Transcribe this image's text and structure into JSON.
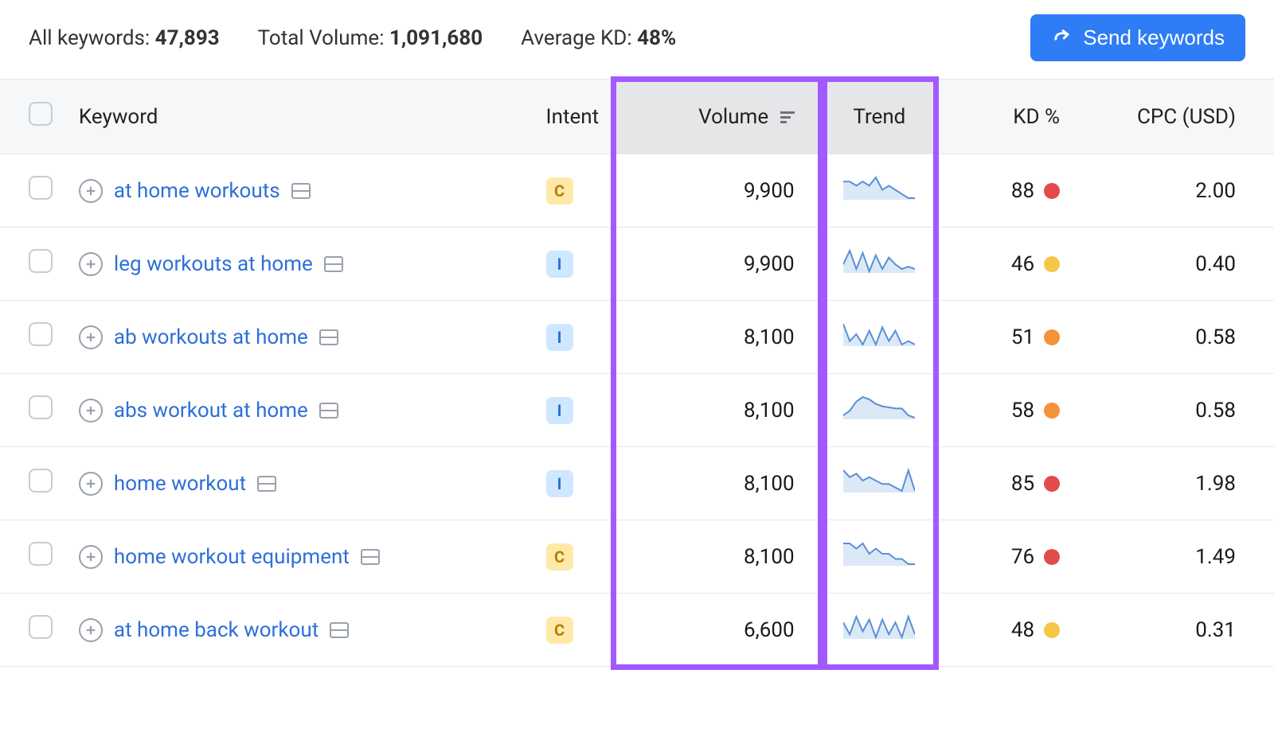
{
  "summary": {
    "all_keywords_label": "All keywords:",
    "all_keywords_value": "47,893",
    "total_volume_label": "Total Volume:",
    "total_volume_value": "1,091,680",
    "avg_kd_label": "Average KD:",
    "avg_kd_value": "48%"
  },
  "send_button_label": "Send keywords",
  "columns": {
    "keyword": "Keyword",
    "intent": "Intent",
    "volume": "Volume",
    "trend": "Trend",
    "kd": "KD %",
    "cpc": "CPC (USD)"
  },
  "intent_styles": {
    "C": {
      "bg": "#ffe9a8",
      "fg": "#b47d00"
    },
    "I": {
      "bg": "#cfe7ff",
      "fg": "#2e6fd9"
    }
  },
  "kd_colors": {
    "red": "#e44b4b",
    "orange": "#f59338",
    "yellow": "#f6c647"
  },
  "spark_style": {
    "stroke": "#5a8fd6",
    "fill": "#dbe9f7"
  },
  "highlight_color": "#a259ff",
  "rows": [
    {
      "keyword": "at home workouts",
      "intent": "C",
      "volume": "9,900",
      "kd": "88",
      "kd_color": "red",
      "cpc": "2.00",
      "spark": [
        12,
        12,
        13,
        12,
        13,
        11,
        14,
        13,
        14,
        15,
        16,
        16
      ]
    },
    {
      "keyword": "leg workouts at home",
      "intent": "I",
      "volume": "9,900",
      "kd": "46",
      "kd_color": "yellow",
      "cpc": "0.40",
      "spark": [
        16,
        10,
        18,
        11,
        19,
        12,
        18,
        13,
        16,
        18,
        17,
        18
      ]
    },
    {
      "keyword": "ab workouts at home",
      "intent": "I",
      "volume": "8,100",
      "kd": "51",
      "kd_color": "orange",
      "cpc": "0.58",
      "spark": [
        8,
        18,
        14,
        20,
        12,
        20,
        10,
        18,
        12,
        20,
        18,
        20
      ]
    },
    {
      "keyword": "abs workout at home",
      "intent": "I",
      "volume": "8,100",
      "kd": "58",
      "kd_color": "orange",
      "cpc": "0.58",
      "spark": [
        20,
        16,
        8,
        4,
        6,
        10,
        12,
        13,
        14,
        14,
        20,
        22
      ]
    },
    {
      "keyword": "home workout",
      "intent": "I",
      "volume": "8,100",
      "kd": "85",
      "kd_color": "red",
      "cpc": "1.98",
      "spark": [
        14,
        16,
        15,
        17,
        16,
        17,
        18,
        18,
        19,
        20,
        14,
        20
      ]
    },
    {
      "keyword": "home workout equipment",
      "intent": "C",
      "volume": "8,100",
      "kd": "76",
      "kd_color": "red",
      "cpc": "1.49",
      "spark": [
        16,
        16,
        17,
        16,
        18,
        17,
        18,
        18,
        19,
        19,
        20,
        20
      ]
    },
    {
      "keyword": "at home back workout",
      "intent": "C",
      "volume": "6,600",
      "kd": "48",
      "kd_color": "yellow",
      "cpc": "0.31",
      "spark": [
        12,
        20,
        8,
        18,
        10,
        22,
        10,
        20,
        12,
        22,
        8,
        20
      ]
    }
  ]
}
